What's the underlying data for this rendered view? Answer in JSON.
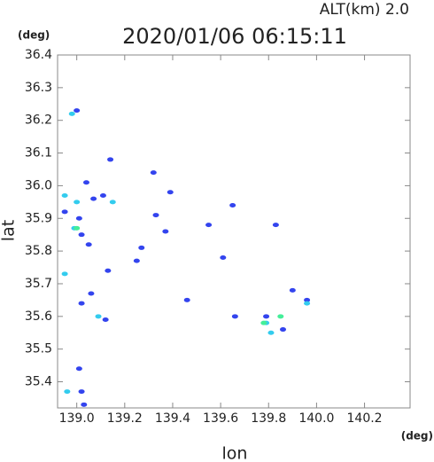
{
  "chart_data": {
    "type": "scatter",
    "title": "2020/01/06 06:15:11",
    "annotation": "ALT(km) 2.0",
    "y_unit": "(deg)",
    "x_unit": "(deg)",
    "xlabel": "lon",
    "ylabel": "lat",
    "xlim": [
      138.92,
      140.39
    ],
    "ylim": [
      35.32,
      36.4
    ],
    "xticks": [
      {
        "value": 139.0,
        "label": "139.0"
      },
      139.2,
      139.4,
      139.6,
      139.8,
      {
        "value": 140.0,
        "label": "140.0"
      },
      140.2
    ],
    "yticks": [
      35.4,
      35.5,
      35.6,
      35.7,
      35.8,
      35.9,
      {
        "value": 36.0,
        "label": "36.0"
      },
      36.1,
      36.2,
      36.3,
      36.4
    ],
    "series": [
      {
        "color": "#3344ee",
        "x": [
          139.0,
          139.04,
          138.95,
          139.01,
          139.07,
          139.11,
          139.14,
          139.32,
          139.39,
          139.33,
          139.37,
          139.27,
          139.25,
          139.13,
          139.06,
          139.12,
          139.02,
          139.46,
          139.66,
          139.9,
          139.96,
          139.79,
          139.86,
          139.01,
          139.02,
          139.03,
          139.02,
          139.05,
          139.65,
          139.83,
          139.55,
          139.61
        ],
        "values": [
          36.23,
          36.01,
          35.92,
          35.9,
          35.96,
          35.97,
          36.08,
          36.04,
          35.98,
          35.91,
          35.86,
          35.81,
          35.77,
          35.74,
          35.67,
          35.59,
          35.64,
          35.65,
          35.6,
          35.68,
          35.65,
          35.6,
          35.56,
          35.44,
          35.37,
          35.33,
          35.85,
          35.82,
          35.94,
          35.88,
          35.88,
          35.78
        ]
      },
      {
        "color": "#33ccee",
        "x": [
          138.98,
          138.95,
          139.0,
          138.99,
          138.95,
          139.09,
          139.79,
          139.81,
          139.96,
          139.15,
          138.96
        ],
        "values": [
          36.22,
          35.97,
          35.95,
          35.87,
          35.73,
          35.6,
          35.58,
          35.55,
          35.64,
          35.95,
          35.37
        ]
      },
      {
        "color": "#44ee99",
        "x": [
          139.0,
          139.85,
          139.78
        ],
        "values": [
          35.87,
          35.6,
          35.58
        ]
      }
    ]
  }
}
